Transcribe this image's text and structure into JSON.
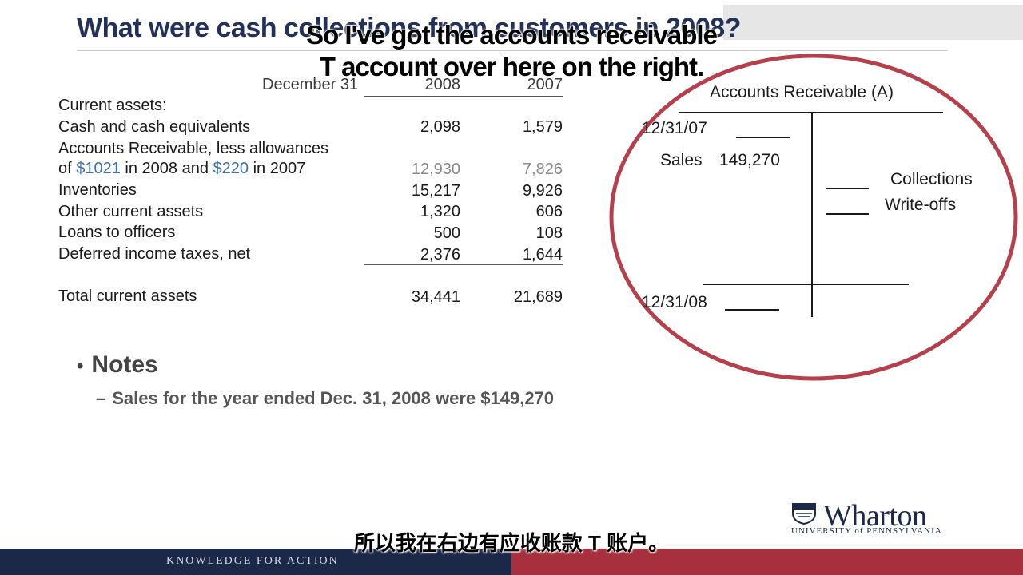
{
  "slide": {
    "title": "What were cash collections from customers in 2008?"
  },
  "subtitles": {
    "english_line1": "So I've got the accounts receivable",
    "english_line2": "T account over here on the right.",
    "chinese": "所以我在右边有应收账款 T 账户。"
  },
  "balance_sheet": {
    "header": {
      "date_label": "December 31",
      "year1": "2008",
      "year2": "2007"
    },
    "section_label": "Current assets:",
    "rows": [
      {
        "label": "Cash and cash equivalents",
        "v2008": "2,098",
        "v2007": "1,579"
      },
      {
        "label_line1": "Accounts Receivable, less allowances",
        "label_line2_pre": "of ",
        "allow_2008": "$1021",
        "label_line2_mid": " in 2008 and ",
        "allow_2007": "$220",
        "label_line2_post": " in 2007",
        "v2008": "12,930",
        "v2007": "7,826"
      },
      {
        "label": "Inventories",
        "v2008": "15,217",
        "v2007": "9,926"
      },
      {
        "label": "Other current assets",
        "v2008": "1,320",
        "v2007": "606"
      },
      {
        "label": "Loans to officers",
        "v2008": "500",
        "v2007": "108"
      },
      {
        "label": "Deferred income taxes, net",
        "v2008": "2,376",
        "v2007": "1,644"
      }
    ],
    "total": {
      "label": "Total current assets",
      "v2008": "34,441",
      "v2007": "21,689"
    }
  },
  "notes": {
    "bullet": "•",
    "heading": "Notes",
    "dash": "–",
    "item": "Sales for the year ended Dec. 31, 2008 were $149,270"
  },
  "t_account": {
    "title": "Accounts Receivable (A)",
    "opening_date": "12/31/07",
    "sales_label": "Sales",
    "sales_value": "149,270",
    "collections_label": "Collections",
    "writeoffs_label": "Write-offs",
    "closing_date": "12/31/08"
  },
  "colors": {
    "circle": "#b5404c",
    "title": "#233158",
    "footer_navy": "#1c2848",
    "footer_red": "#a6303e",
    "allowance_blue": "#3b6fb5"
  },
  "footer": {
    "tagline": "KNOWLEDGE FOR ACTION",
    "logo_name": "Wharton",
    "logo_university": "UNIVERSITY of PENNSYLVANIA",
    "logo_icon": "penn-shield-icon"
  }
}
